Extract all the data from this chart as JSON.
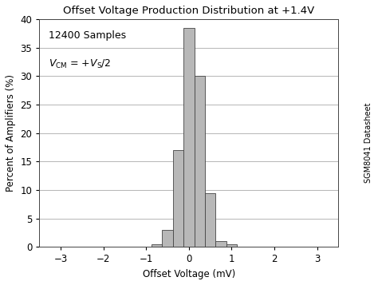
{
  "title": "Offset Voltage Production Distribution at +1.4V",
  "xlabel": "Offset Voltage (mV)",
  "ylabel": "Percent of Amplifiers (%)",
  "annotation_line1": "12400 Samples",
  "xlim": [
    -3.5,
    3.5
  ],
  "ylim": [
    0,
    40
  ],
  "xticks": [
    -3,
    -2,
    -1,
    0,
    1,
    2,
    3
  ],
  "yticks": [
    0,
    5,
    10,
    15,
    20,
    25,
    30,
    35,
    40
  ],
  "bar_centers": [
    -0.75,
    -0.5,
    -0.25,
    0.0,
    0.25,
    0.5,
    0.75,
    1.0
  ],
  "bar_heights": [
    0.5,
    3.0,
    17.0,
    38.5,
    30.0,
    9.5,
    1.0,
    0.5
  ],
  "bar_width": 0.25,
  "bar_color": "#b8b8b8",
  "bar_edgecolor": "#444444",
  "background_color": "#ffffff",
  "side_label": "SGM8041 Datasheet",
  "title_fontsize": 9.5,
  "label_fontsize": 8.5,
  "tick_fontsize": 8.5,
  "annotation_fontsize": 9
}
